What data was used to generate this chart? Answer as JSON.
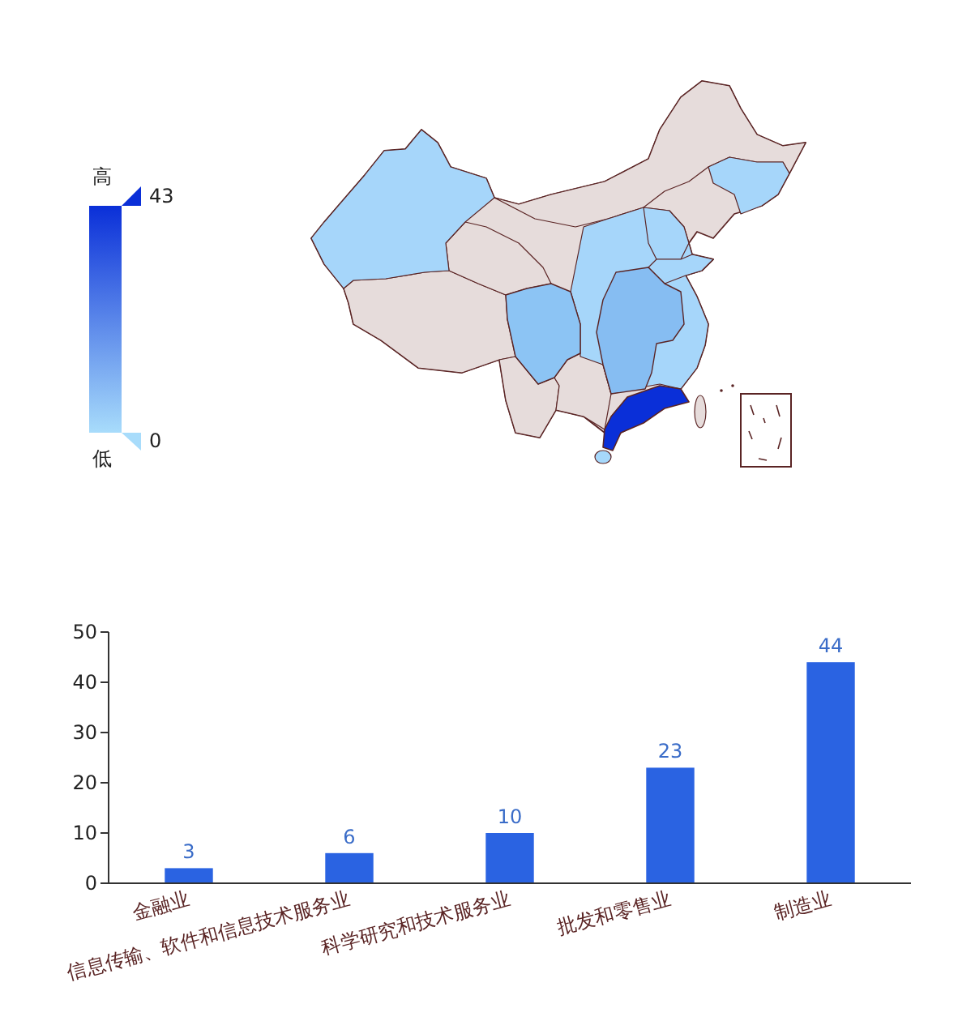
{
  "chart_data": [
    {
      "type": "other",
      "annotations": [
        "高",
        "43",
        "低",
        "0"
      ]
    },
    {
      "type": "bar",
      "categories": [
        "金融业",
        "信息传输、软件和信息技术服务业",
        "科学研究和技术服务业",
        "批发和零售业",
        "制造业"
      ],
      "values": [
        3,
        6,
        10,
        23,
        44
      ],
      "color": "#2a63e2",
      "ylim": [
        0,
        50
      ],
      "yticks": [
        0,
        10,
        20,
        30,
        40,
        50
      ],
      "data_labels": true
    }
  ]
}
